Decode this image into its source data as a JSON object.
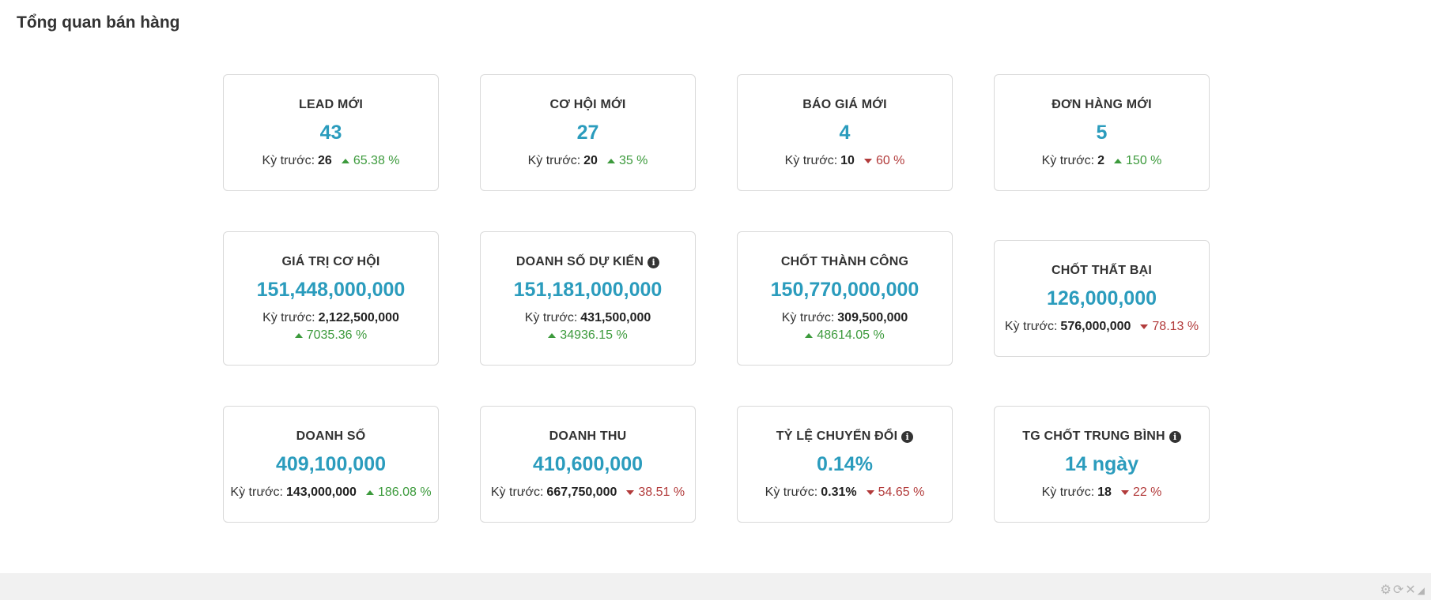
{
  "page": {
    "title": "Tổng quan bán hàng"
  },
  "prev_label": "Kỳ trước:",
  "cards": [
    {
      "title": "LEAD MỚI",
      "value": "43",
      "prev": "26",
      "change": "65.38 %",
      "direction": "up",
      "info": false
    },
    {
      "title": "CƠ HỘI MỚI",
      "value": "27",
      "prev": "20",
      "change": "35 %",
      "direction": "up",
      "info": false
    },
    {
      "title": "BÁO GIÁ MỚI",
      "value": "4",
      "prev": "10",
      "change": "60 %",
      "direction": "down",
      "info": false
    },
    {
      "title": "ĐƠN HÀNG MỚI",
      "value": "5",
      "prev": "2",
      "change": "150 %",
      "direction": "up",
      "info": false
    },
    {
      "title": "GIÁ TRỊ CƠ HỘI",
      "value": "151,448,000,000",
      "prev": "2,122,500,000",
      "change": "7035.36 %",
      "direction": "up",
      "info": false
    },
    {
      "title": "DOANH SỐ DỰ KIẾN",
      "value": "151,181,000,000",
      "prev": "431,500,000",
      "change": "34936.15 %",
      "direction": "up",
      "info": true
    },
    {
      "title": "CHỐT THÀNH CÔNG",
      "value": "150,770,000,000",
      "prev": "309,500,000",
      "change": "48614.05 %",
      "direction": "up",
      "info": false
    },
    {
      "title": "CHỐT THẤT BẠI",
      "value": "126,000,000",
      "prev": "576,000,000",
      "change": "78.13 %",
      "direction": "down",
      "info": false
    },
    {
      "title": "DOANH SỐ",
      "value": "409,100,000",
      "prev": "143,000,000",
      "change": "186.08 %",
      "direction": "up",
      "info": false
    },
    {
      "title": "DOANH THU",
      "value": "410,600,000",
      "prev": "667,750,000",
      "change": "38.51 %",
      "direction": "down",
      "info": false
    },
    {
      "title": "TỶ LỆ CHUYỂN ĐỔI",
      "value": "0.14%",
      "prev": "0.31%",
      "change": "54.65 %",
      "direction": "down",
      "info": true
    },
    {
      "title": "TG CHỐT TRUNG BÌNH",
      "value": "14 ngày",
      "prev": "18",
      "change": "22 %",
      "direction": "down",
      "info": true
    }
  ],
  "icons": {
    "info": "info-circle-icon",
    "gear": "gear-icon",
    "refresh": "refresh-icon",
    "close": "close-icon",
    "resize": "resize-icon"
  },
  "colors": {
    "value": "#2b9cbd",
    "up": "#3c9a3c",
    "down": "#b23b3b"
  }
}
